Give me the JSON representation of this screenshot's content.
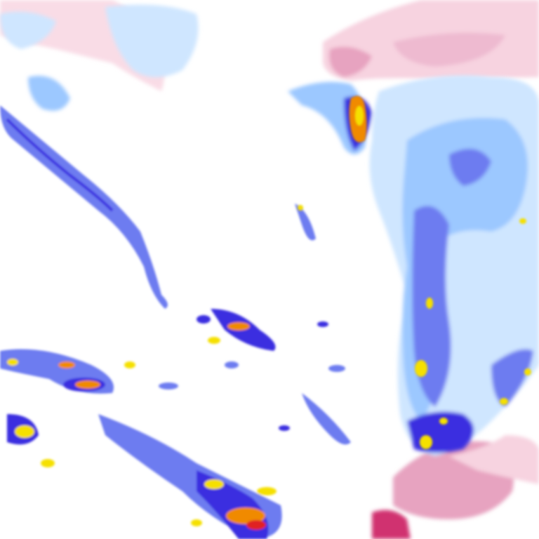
{
  "map": {
    "type": "precipitation-radar-tile",
    "colors": {
      "background": "#ffffff",
      "rain_very_light": "#cfe6ff",
      "rain_light": "#9cc8ff",
      "rain_moderate": "#6d7cf0",
      "rain_heavy": "#3a2fe0",
      "rain_intense": "#f5e000",
      "rain_very_intense": "#f08a00",
      "rain_extreme": "#e02020",
      "snow_light": "#f7d3e0",
      "snow_moderate": "#e7a3c0",
      "snow_heavy": "#c0508a",
      "mix": "#d03070"
    }
  }
}
